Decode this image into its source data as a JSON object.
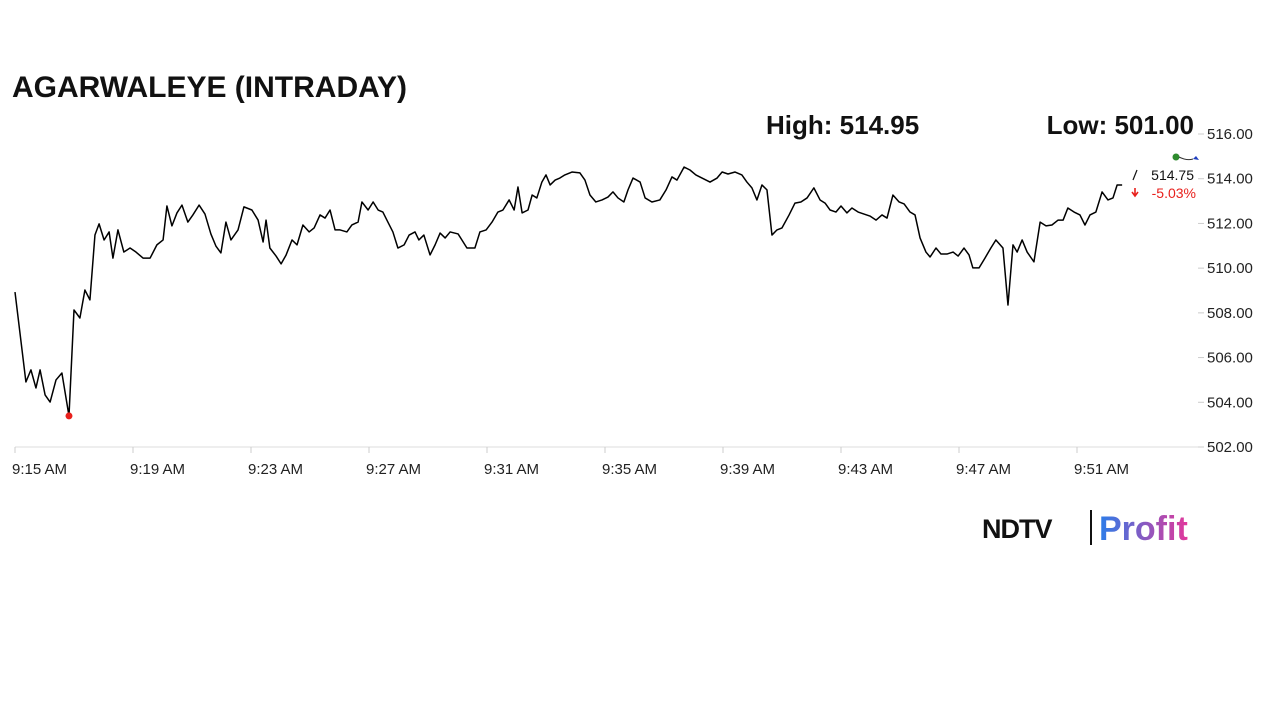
{
  "chart_data": {
    "type": "line",
    "title": "AGARWALEYE (INTRADAY)",
    "high_label": "High: 514.95",
    "low_label": "Low: 501.00",
    "last_label": "514.75",
    "change_label": "-5.03%",
    "logo": [
      "NDTV",
      "Profit"
    ],
    "color": "#000000",
    "low_marker_color": "#e8201c",
    "x": [
      15.0,
      15.37,
      15.54,
      15.71,
      15.85,
      16.02,
      16.19,
      16.39,
      16.59,
      16.83,
      17.0,
      17.2,
      17.37,
      17.54,
      17.71,
      17.85,
      18.02,
      18.19,
      18.32,
      18.49,
      18.69,
      18.9,
      19.1,
      19.34,
      19.58,
      19.81,
      20.02,
      20.15,
      20.32,
      20.49,
      20.66,
      20.86,
      21.03,
      21.24,
      21.44,
      21.64,
      21.81,
      21.98,
      22.15,
      22.32,
      22.56,
      22.76,
      23.03,
      23.24,
      23.41,
      23.51,
      23.64,
      23.85,
      24.02,
      24.19,
      24.39,
      24.56,
      24.76,
      24.97,
      25.14,
      25.34,
      25.51,
      25.68,
      25.85,
      26.02,
      26.25,
      26.42,
      26.63,
      26.76,
      26.97,
      27.14,
      27.31,
      27.47,
      27.64,
      27.81,
      27.98,
      28.19,
      28.36,
      28.56,
      28.69,
      28.86,
      29.07,
      29.24,
      29.41,
      29.58,
      29.75,
      30.02,
      30.15,
      30.32,
      30.59,
      30.76,
      30.97,
      31.17,
      31.37,
      31.54,
      31.75,
      31.92,
      32.05,
      32.19,
      32.39,
      32.53,
      32.69,
      32.86,
      33.0,
      33.14,
      33.31,
      33.47,
      33.64,
      33.88,
      34.15,
      34.32,
      34.49,
      34.69,
      34.9,
      35.1,
      35.27,
      35.44,
      35.64,
      35.78,
      35.95,
      36.19,
      36.36,
      36.59,
      36.86,
      37.07,
      37.27,
      37.44,
      37.68,
      37.88,
      38.08,
      38.29,
      38.56,
      38.8,
      38.97,
      39.17,
      39.41,
      39.64,
      39.81,
      39.98,
      40.15,
      40.32,
      40.49,
      40.66,
      40.83,
      41.0,
      41.24,
      41.44,
      41.64,
      41.85,
      42.08,
      42.29,
      42.46,
      42.63,
      42.83,
      43.0,
      43.2,
      43.37,
      43.58,
      43.78,
      43.98,
      44.19,
      44.39,
      44.56,
      44.76,
      44.97,
      45.14,
      45.34,
      45.51,
      45.68,
      45.88,
      46.02,
      46.22,
      46.39,
      46.59,
      46.8,
      46.97,
      47.17,
      47.34,
      47.47,
      47.68,
      47.88,
      48.08,
      48.25,
      48.49,
      48.66,
      48.83,
      48.97,
      49.14,
      49.31,
      49.54,
      49.75,
      49.95,
      50.15,
      50.36,
      50.53,
      50.69,
      50.9,
      51.1,
      51.27,
      51.44,
      51.64,
      51.85,
      52.05,
      52.22,
      52.36,
      52.53
    ],
    "values": [
      508.93,
      504.91,
      505.45,
      504.64,
      505.45,
      504.33,
      504.01,
      505.0,
      505.31,
      503.39,
      508.13,
      507.77,
      509.02,
      508.58,
      511.48,
      511.98,
      511.26,
      511.62,
      510.45,
      511.71,
      510.72,
      510.9,
      510.72,
      510.45,
      510.45,
      511.04,
      511.26,
      512.78,
      511.89,
      512.47,
      512.82,
      512.06,
      512.38,
      512.82,
      512.42,
      511.53,
      510.99,
      510.68,
      512.06,
      511.26,
      511.71,
      512.74,
      512.6,
      512.15,
      511.17,
      512.15,
      510.9,
      510.54,
      510.19,
      510.59,
      511.26,
      511.04,
      511.93,
      511.62,
      511.8,
      512.38,
      512.24,
      512.6,
      511.71,
      511.71,
      511.62,
      511.93,
      512.06,
      512.96,
      512.6,
      512.96,
      512.6,
      512.51,
      512.06,
      511.62,
      510.9,
      511.04,
      511.48,
      511.62,
      511.26,
      511.48,
      510.59,
      511.04,
      511.57,
      511.35,
      511.62,
      511.53,
      511.26,
      510.9,
      510.9,
      511.62,
      511.71,
      512.06,
      512.51,
      512.6,
      513.05,
      512.6,
      513.63,
      512.47,
      512.6,
      513.27,
      513.14,
      513.85,
      514.17,
      513.72,
      513.94,
      514.03,
      514.17,
      514.3,
      514.26,
      513.94,
      513.27,
      512.96,
      513.05,
      513.18,
      513.41,
      513.14,
      512.96,
      513.5,
      514.03,
      513.85,
      513.14,
      512.96,
      513.05,
      513.5,
      514.08,
      513.94,
      514.52,
      514.39,
      514.17,
      514.03,
      513.85,
      514.03,
      514.3,
      514.21,
      514.3,
      514.17,
      513.85,
      513.59,
      513.05,
      513.72,
      513.5,
      511.48,
      511.71,
      511.8,
      512.38,
      512.91,
      512.96,
      513.14,
      513.59,
      513.05,
      512.91,
      512.6,
      512.51,
      512.78,
      512.47,
      512.69,
      512.51,
      512.42,
      512.33,
      512.15,
      512.38,
      512.24,
      513.27,
      512.96,
      512.87,
      512.51,
      512.38,
      511.35,
      510.72,
      510.5,
      510.9,
      510.63,
      510.63,
      510.72,
      510.54,
      510.9,
      510.59,
      510.01,
      510.01,
      510.45,
      510.9,
      511.26,
      510.9,
      508.35,
      511.04,
      510.72,
      511.26,
      510.72,
      510.28,
      512.06,
      511.89,
      511.93,
      512.15,
      512.15,
      512.69,
      512.51,
      512.38,
      511.93,
      512.38,
      512.51,
      513.41,
      513.05,
      513.14,
      513.72,
      513.72
    ],
    "xlim": [
      15,
      55
    ],
    "xticks": [
      {
        "value": 15,
        "label": "9:15 AM"
      },
      {
        "value": 19,
        "label": "9:19 AM"
      },
      {
        "value": 23,
        "label": "9:23 AM"
      },
      {
        "value": 27,
        "label": "9:27 AM"
      },
      {
        "value": 31,
        "label": "9:31 AM"
      },
      {
        "value": 35,
        "label": "9:35 AM"
      },
      {
        "value": 39,
        "label": "9:39 AM"
      },
      {
        "value": 43,
        "label": "9:43 AM"
      },
      {
        "value": 47,
        "label": "9:47 AM"
      },
      {
        "value": 51,
        "label": "9:51 AM"
      }
    ],
    "ylim": [
      502,
      516
    ],
    "yticks": [
      {
        "value": 502,
        "label": "502.00"
      },
      {
        "value": 504,
        "label": "504.00"
      },
      {
        "value": 506,
        "label": "506.00"
      },
      {
        "value": 508,
        "label": "508.00"
      },
      {
        "value": 510,
        "label": "510.00"
      },
      {
        "value": 512,
        "label": "512.00"
      },
      {
        "value": 514,
        "label": "514.00"
      },
      {
        "value": 516,
        "label": "516.00"
      }
    ],
    "grid": false
  }
}
